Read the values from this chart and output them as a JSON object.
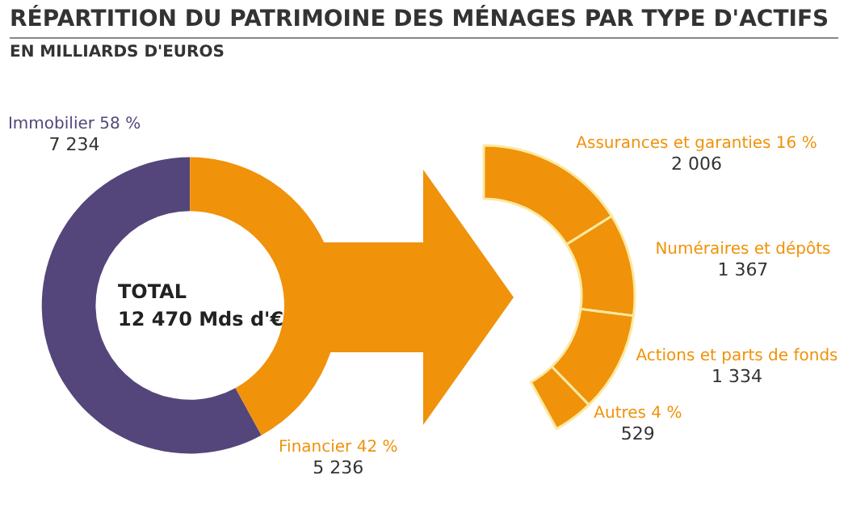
{
  "chart_data": [
    {
      "type": "donut",
      "title": "RÉPARTITION DU PATRIMOINE DES MÉNAGES PAR TYPE D'ACTIFS",
      "subtitle": "EN MILLIARDS D'EUROS",
      "annotations": [
        "TOTAL",
        "12 470 Mds d'€"
      ],
      "categories": [
        "Immobilier 58 %",
        "Financier 42 %"
      ],
      "values": [
        7234,
        5236
      ],
      "value_labels": [
        "7 234",
        "5 236"
      ],
      "colors": [
        "#54467a",
        "#f0920a"
      ],
      "legend": false
    },
    {
      "type": "donut",
      "categories": [
        "Assurances et garanties 16 %",
        "Numéraires et dépôts",
        "Actions et parts de fonds",
        "Autres 4 %"
      ],
      "values": [
        2006,
        1367,
        1334,
        529
      ],
      "value_labels": [
        "2 006",
        "1 367",
        "1 334",
        "529"
      ],
      "colors": [
        "#f0920a",
        "#f0920a",
        "#f0920a",
        "#f0920a"
      ],
      "legend": false
    }
  ]
}
